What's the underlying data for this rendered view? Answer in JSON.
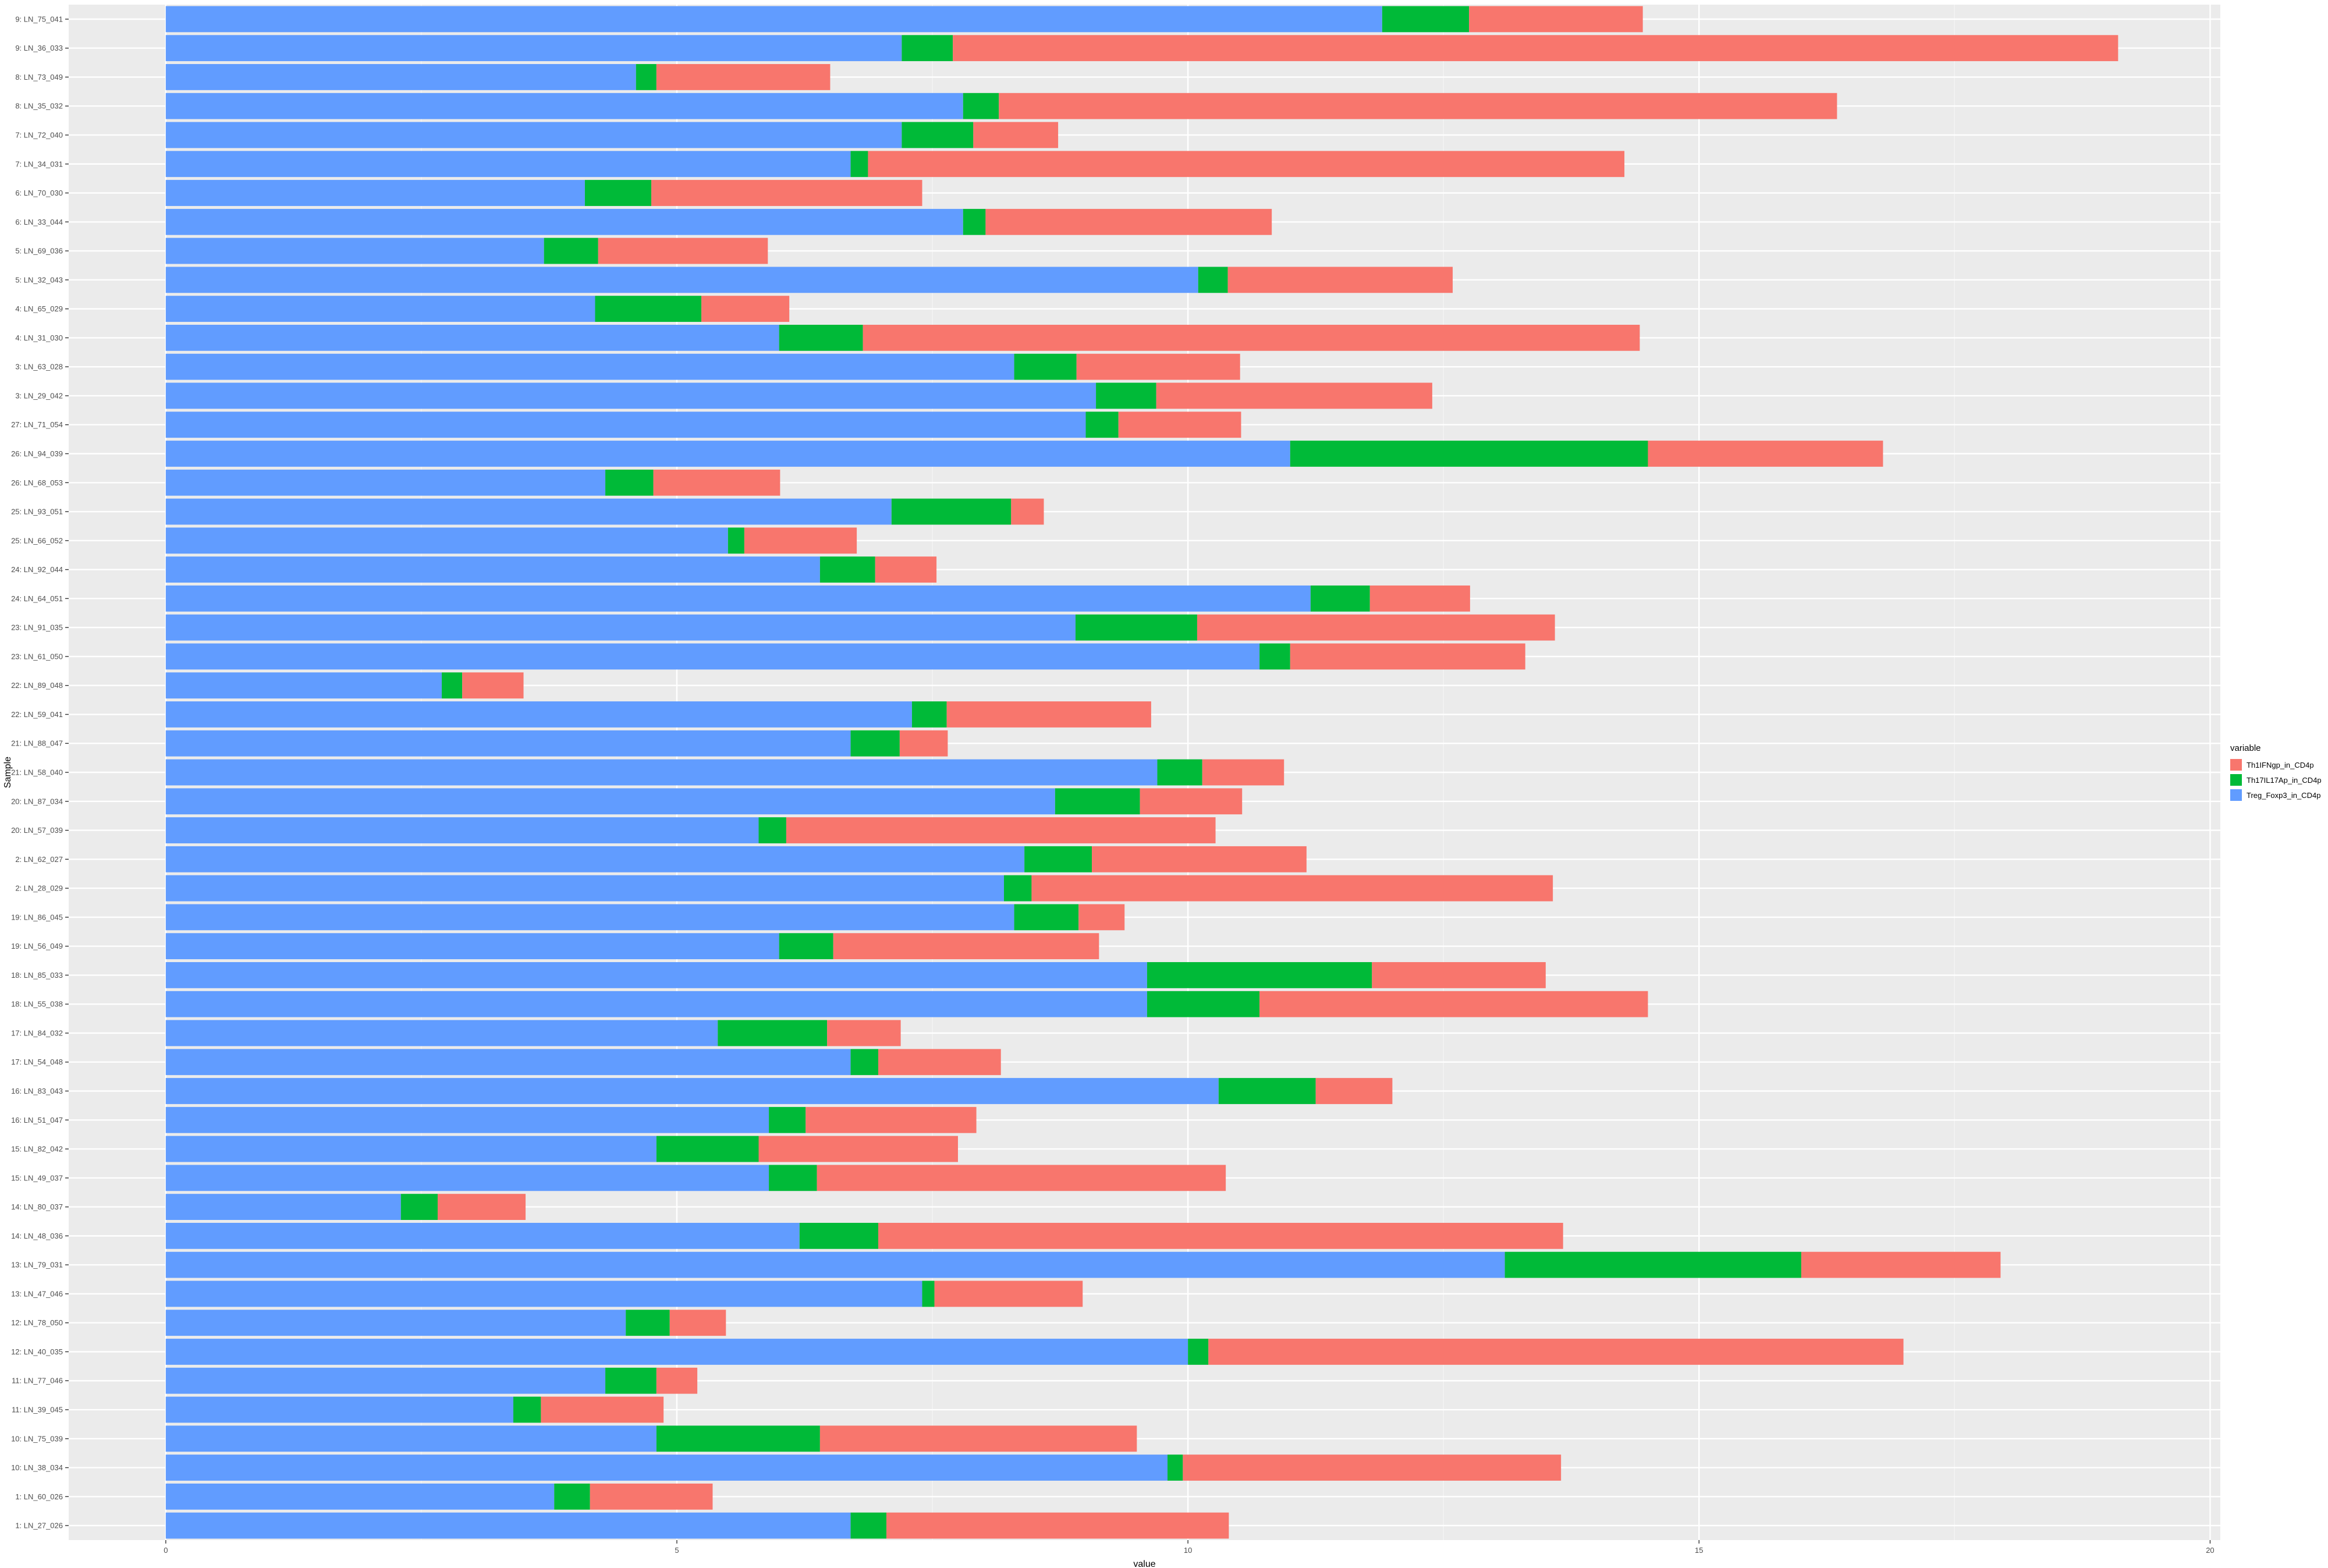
{
  "chart_data": {
    "type": "bar",
    "orientation": "horizontal",
    "stacked": true,
    "xlabel": "value",
    "ylabel": "Sample",
    "xlim": [
      -0.95,
      20.1
    ],
    "xticks": [
      0,
      5,
      10,
      15,
      20
    ],
    "grid": true,
    "legend": {
      "title": "variable",
      "position": "right",
      "entries": [
        {
          "name": "Th1IFNgp_in_CD4p",
          "color": "#F8766D"
        },
        {
          "name": "Th17IL17Ap_in_CD4p",
          "color": "#00BA38"
        },
        {
          "name": "Treg_Foxp3_in_CD4p",
          "color": "#619CFF"
        }
      ]
    },
    "categories": [
      "1: LN_27_026",
      "1: LN_60_026",
      "10: LN_38_034",
      "10: LN_75_039",
      "11: LN_39_045",
      "11: LN_77_046",
      "12: LN_40_035",
      "12: LN_78_050",
      "13: LN_47_046",
      "13: LN_79_031",
      "14: LN_48_036",
      "14: LN_80_037",
      "15: LN_49_037",
      "15: LN_82_042",
      "16: LN_51_047",
      "16: LN_83_043",
      "17: LN_54_048",
      "17: LN_84_032",
      "18: LN_55_038",
      "18: LN_85_033",
      "19: LN_56_049",
      "19: LN_86_045",
      "2: LN_28_029",
      "2: LN_62_027",
      "20: LN_57_039",
      "20: LN_87_034",
      "21: LN_58_040",
      "21: LN_88_047",
      "22: LN_59_041",
      "22: LN_89_048",
      "23: LN_61_050",
      "23: LN_91_035",
      "24: LN_64_051",
      "24: LN_92_044",
      "25: LN_66_052",
      "25: LN_93_051",
      "26: LN_68_053",
      "26: LN_94_039",
      "27: LN_71_054",
      "3: LN_29_042",
      "3: LN_63_028",
      "4: LN_31_030",
      "4: LN_65_029",
      "5: LN_32_043",
      "5: LN_69_036",
      "6: LN_33_044",
      "6: LN_70_030",
      "7: LN_34_031",
      "7: LN_72_040",
      "8: LN_35_032",
      "8: LN_73_049",
      "9: LN_36_033",
      "9: LN_75_041"
    ],
    "series": [
      {
        "name": "Treg_Foxp3_in_CD4p",
        "values": [
          6.7,
          3.8,
          9.8,
          4.8,
          3.4,
          4.3,
          10.0,
          4.5,
          7.4,
          13.1,
          6.2,
          2.3,
          5.9,
          4.8,
          5.9,
          10.3,
          6.7,
          5.4,
          9.6,
          9.6,
          6.0,
          8.3,
          8.2,
          8.4,
          5.8,
          8.7,
          9.7,
          6.7,
          7.3,
          2.7,
          10.7,
          8.9,
          11.2,
          6.4,
          5.5,
          7.1,
          4.3,
          11.0,
          9.0,
          9.1,
          8.3,
          6.0,
          4.2,
          10.1,
          3.7,
          7.8,
          4.1,
          6.7,
          7.2,
          7.8,
          4.6,
          7.2,
          11.9
        ]
      },
      {
        "name": "Th17IL17Ap_in_CD4p",
        "values": [
          0.35,
          0.35,
          0.15,
          1.6,
          0.27,
          0.5,
          0.2,
          0.43,
          0.12,
          2.9,
          0.77,
          0.36,
          0.47,
          1.0,
          0.36,
          0.95,
          0.27,
          1.07,
          1.1,
          2.2,
          0.53,
          0.63,
          0.27,
          0.66,
          0.27,
          0.83,
          0.44,
          0.48,
          0.34,
          0.2,
          0.3,
          1.19,
          0.58,
          0.54,
          0.16,
          1.17,
          0.47,
          3.5,
          0.32,
          0.59,
          0.61,
          0.82,
          1.04,
          0.29,
          0.53,
          0.22,
          0.65,
          0.17,
          0.7,
          0.35,
          0.2,
          0.5,
          0.85
        ]
      },
      {
        "name": "Th1IFNgp_in_CD4p",
        "values": [
          3.35,
          1.2,
          3.7,
          3.1,
          1.2,
          0.4,
          6.8,
          0.55,
          1.45,
          1.95,
          6.7,
          0.86,
          4.0,
          1.95,
          1.67,
          0.75,
          1.2,
          0.72,
          3.8,
          1.7,
          2.6,
          0.45,
          5.1,
          2.1,
          4.2,
          1.0,
          0.8,
          0.47,
          2.0,
          0.6,
          2.3,
          3.5,
          0.98,
          0.6,
          1.1,
          0.32,
          1.24,
          2.3,
          1.2,
          2.7,
          1.6,
          7.6,
          0.86,
          2.2,
          1.66,
          2.8,
          2.65,
          7.4,
          0.83,
          8.2,
          1.7,
          11.4,
          1.7
        ]
      }
    ]
  }
}
